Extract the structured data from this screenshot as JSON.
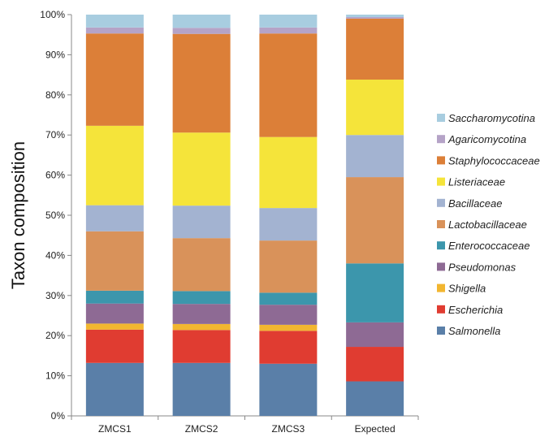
{
  "chart_data": {
    "type": "bar",
    "stacked": true,
    "percent": true,
    "categories": [
      "ZMCS1",
      "ZMCS2",
      "ZMCS3",
      "Expected"
    ],
    "ylabel": "Taxon composition",
    "ylim": [
      0,
      100
    ],
    "yticks": [
      "0%",
      "10%",
      "20%",
      "30%",
      "40%",
      "50%",
      "60%",
      "70%",
      "80%",
      "90%",
      "100%"
    ],
    "legend_position": "right",
    "series": [
      {
        "name": "Salmonella",
        "color": "#5a7fa8",
        "values": [
          13.2,
          13.2,
          13.0,
          8.6
        ]
      },
      {
        "name": "Escherichia",
        "color": "#e03c31",
        "values": [
          8.3,
          8.2,
          8.2,
          8.6
        ]
      },
      {
        "name": "Shigella",
        "color": "#f2b630",
        "values": [
          1.5,
          1.5,
          1.5,
          0
        ]
      },
      {
        "name": "Pseudomonas",
        "color": "#8e6a94",
        "values": [
          5.0,
          5.0,
          5.0,
          6.1
        ]
      },
      {
        "name": "Enterococcaceae",
        "color": "#3c96ac",
        "values": [
          3.2,
          3.2,
          3.0,
          14.7
        ]
      },
      {
        "name": "Lactobacillaceae",
        "color": "#d9925a",
        "values": [
          14.8,
          13.2,
          13.0,
          21.5
        ]
      },
      {
        "name": "Bacillaceae",
        "color": "#a3b3d1",
        "values": [
          6.5,
          8.1,
          8.1,
          10.5
        ]
      },
      {
        "name": "Listeriaceae",
        "color": "#f5e43a",
        "values": [
          19.8,
          18.2,
          17.7,
          13.8
        ]
      },
      {
        "name": "Staphylococcaceae",
        "color": "#dc7f38",
        "values": [
          23.0,
          24.6,
          25.8,
          15.2
        ]
      },
      {
        "name": "Agaricomycotina",
        "color": "#b5a3c7",
        "values": [
          1.5,
          1.5,
          1.5,
          0.4
        ]
      },
      {
        "name": "Saccharomycotina",
        "color": "#a8cde0",
        "values": [
          3.2,
          3.3,
          3.2,
          0.6
        ]
      }
    ]
  }
}
